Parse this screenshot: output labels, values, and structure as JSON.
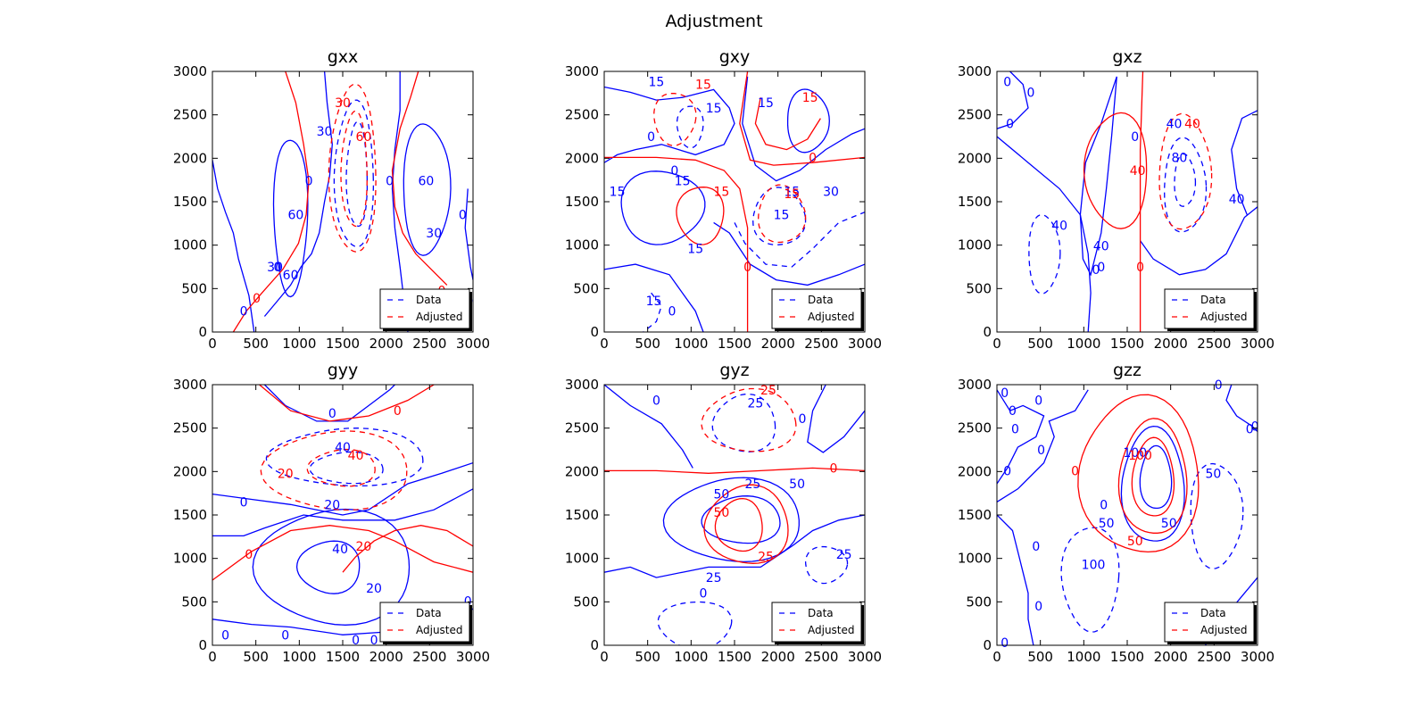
{
  "figure": {
    "title": "Adjustment"
  },
  "chart_data": [
    {
      "type": "contour",
      "title": "gxx",
      "xlim": [
        0,
        3000
      ],
      "ylim": [
        0,
        3000
      ],
      "xticks": [
        "0",
        "500",
        "1000",
        "1500",
        "2000",
        "2500",
        "3000"
      ],
      "yticks": [
        "0",
        "500",
        "1000",
        "1500",
        "2000",
        "2500",
        "3000"
      ],
      "legend": {
        "placement": "lower-right",
        "entries": [
          {
            "label": "Data",
            "color": "#0000ff"
          },
          {
            "label": "Adjusted",
            "color": "#ff0000"
          }
        ]
      },
      "series": [
        {
          "name": "Data",
          "color": "#0000ff",
          "level_labels": [
            "30",
            "60",
            "0",
            "60",
            "30",
            "0",
            "60",
            "30",
            "60",
            "0",
            "0",
            "0"
          ]
        },
        {
          "name": "Adjusted",
          "color": "#ff0000",
          "level_labels": [
            "30",
            "60",
            "0",
            "0"
          ]
        }
      ]
    },
    {
      "type": "contour",
      "title": "gxy",
      "xlim": [
        0,
        3000
      ],
      "ylim": [
        0,
        3000
      ],
      "xticks": [
        "0",
        "500",
        "1000",
        "1500",
        "2000",
        "2500",
        "3000"
      ],
      "yticks": [
        "0",
        "500",
        "1000",
        "1500",
        "2000",
        "2500",
        "3000"
      ],
      "legend": {
        "placement": "lower-right",
        "entries": [
          {
            "label": "Data",
            "color": "#0000ff"
          },
          {
            "label": "Adjusted",
            "color": "#ff0000"
          }
        ]
      },
      "series": [
        {
          "name": "Data",
          "color": "#0000ff",
          "level_labels": [
            "15",
            "15",
            "15",
            "0",
            "15",
            "15",
            "15",
            "30",
            "15",
            "0",
            "0",
            "15",
            "15",
            "0"
          ]
        },
        {
          "name": "Adjusted",
          "color": "#ff0000",
          "level_labels": [
            "15",
            "15",
            "0",
            "15",
            "15",
            "0"
          ]
        }
      ]
    },
    {
      "type": "contour",
      "title": "gxz",
      "xlim": [
        0,
        3000
      ],
      "ylim": [
        0,
        3000
      ],
      "xticks": [
        "0",
        "500",
        "1000",
        "1500",
        "2000",
        "2500",
        "3000"
      ],
      "yticks": [
        "0",
        "500",
        "1000",
        "1500",
        "2000",
        "2500",
        "3000"
      ],
      "legend": {
        "placement": "lower-right",
        "entries": [
          {
            "label": "Data",
            "color": "#0000ff"
          },
          {
            "label": "Adjusted",
            "color": "#ff0000"
          }
        ]
      },
      "series": [
        {
          "name": "Data",
          "color": "#0000ff",
          "level_labels": [
            "0",
            "0",
            "0",
            "0",
            "40",
            "40",
            "0",
            "40",
            "80",
            "40",
            "0"
          ]
        },
        {
          "name": "Adjusted",
          "color": "#ff0000",
          "level_labels": [
            "40",
            "40",
            "0"
          ]
        }
      ]
    },
    {
      "type": "contour",
      "title": "gyy",
      "xlim": [
        0,
        3000
      ],
      "ylim": [
        0,
        3000
      ],
      "xticks": [
        "0",
        "500",
        "1000",
        "1500",
        "2000",
        "2500",
        "3000"
      ],
      "yticks": [
        "0",
        "500",
        "1000",
        "1500",
        "2000",
        "2500",
        "3000"
      ],
      "legend": {
        "placement": "lower-right",
        "entries": [
          {
            "label": "Data",
            "color": "#0000ff"
          },
          {
            "label": "Adjusted",
            "color": "#ff0000"
          }
        ]
      },
      "series": [
        {
          "name": "Data",
          "color": "#0000ff",
          "level_labels": [
            "0",
            "40",
            "20",
            "0",
            "40",
            "20",
            "0",
            "0",
            "0",
            "0",
            "0"
          ]
        },
        {
          "name": "Adjusted",
          "color": "#ff0000",
          "level_labels": [
            "0",
            "40",
            "20",
            "0",
            "20"
          ]
        }
      ]
    },
    {
      "type": "contour",
      "title": "gyz",
      "xlim": [
        0,
        3000
      ],
      "ylim": [
        0,
        3000
      ],
      "xticks": [
        "0",
        "500",
        "1000",
        "1500",
        "2000",
        "2500",
        "3000"
      ],
      "yticks": [
        "0",
        "500",
        "1000",
        "1500",
        "2000",
        "2500",
        "3000"
      ],
      "legend": {
        "placement": "lower-right",
        "entries": [
          {
            "label": "Data",
            "color": "#0000ff"
          },
          {
            "label": "Adjusted",
            "color": "#ff0000"
          }
        ]
      },
      "series": [
        {
          "name": "Data",
          "color": "#0000ff",
          "level_labels": [
            "0",
            "25",
            "0",
            "25",
            "50",
            "50",
            "25",
            "0",
            "25"
          ]
        },
        {
          "name": "Adjusted",
          "color": "#ff0000",
          "level_labels": [
            "25",
            "0",
            "50",
            "25"
          ]
        }
      ]
    },
    {
      "type": "contour",
      "title": "gzz",
      "xlim": [
        0,
        3000
      ],
      "ylim": [
        0,
        3000
      ],
      "xticks": [
        "0",
        "500",
        "1000",
        "1500",
        "2000",
        "2500",
        "3000"
      ],
      "yticks": [
        "0",
        "500",
        "1000",
        "1500",
        "2000",
        "2500",
        "3000"
      ],
      "legend": {
        "placement": "lower-right",
        "entries": [
          {
            "label": "Data",
            "color": "#0000ff"
          },
          {
            "label": "Adjusted",
            "color": "#ff0000"
          }
        ]
      },
      "series": [
        {
          "name": "Data",
          "color": "#0000ff",
          "level_labels": [
            "0",
            "0",
            "0",
            "0",
            "0",
            "0",
            "0",
            "0",
            "0",
            "100",
            "50",
            "50",
            "0",
            "50",
            "100",
            "0",
            "0",
            "0"
          ]
        },
        {
          "name": "Adjusted",
          "color": "#ff0000",
          "level_labels": [
            "100",
            "0",
            "50"
          ]
        }
      ]
    }
  ]
}
